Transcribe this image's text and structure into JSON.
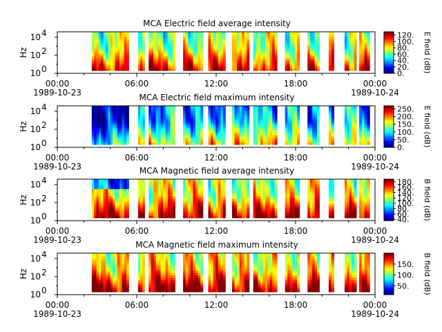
{
  "chart_data": [
    {
      "type": "heatmap",
      "title": "MCA  Electric field average intensity",
      "ylabel": "Hz",
      "ytick_labels": [
        [
          "10",
          "0"
        ],
        [
          "10",
          "2"
        ],
        [
          "10",
          "4"
        ]
      ],
      "xtick_labels": [
        "00:00",
        "06:00",
        "12:00",
        "18:00",
        "00:00"
      ],
      "date_labels": [
        "1989-10-23",
        "1989-10-24"
      ],
      "colorbar": {
        "label": "E field (dB)",
        "ticks": [
          "0.",
          "20.",
          "40.",
          "60.",
          "80.",
          "100.",
          "120."
        ],
        "range": [
          0,
          130
        ]
      },
      "bias": 0.0,
      "data_windows_hours": [
        [
          2.6,
          5.4
        ],
        [
          6.1,
          6.6
        ],
        [
          6.9,
          8.9
        ],
        [
          9.5,
          11.0
        ],
        [
          11.4,
          12.7
        ],
        [
          13.2,
          14.5
        ],
        [
          14.8,
          16.6
        ],
        [
          17.2,
          18.3
        ],
        [
          18.9,
          19.8
        ],
        [
          20.5,
          20.9
        ],
        [
          21.7,
          22.6
        ],
        [
          22.8,
          23.6
        ]
      ]
    },
    {
      "type": "heatmap",
      "title": "MCA  Electric field maximum intensity",
      "ylabel": "Hz",
      "ytick_labels": [
        [
          "10",
          "0"
        ],
        [
          "10",
          "2"
        ],
        [
          "10",
          "4"
        ]
      ],
      "xtick_labels": [
        "00:00",
        "06:00",
        "12:00",
        "18:00",
        "00:00"
      ],
      "date_labels": [
        "1989-10-23",
        "1989-10-24"
      ],
      "colorbar": {
        "label": "E field (dB)",
        "ticks": [
          "0.",
          "50.",
          "100.",
          "150.",
          "200.",
          "250."
        ],
        "range": [
          0,
          270
        ]
      },
      "bias": -0.25,
      "data_windows_hours": [
        [
          2.6,
          5.4
        ],
        [
          6.1,
          6.6
        ],
        [
          6.9,
          8.9
        ],
        [
          9.5,
          11.0
        ],
        [
          11.4,
          12.7
        ],
        [
          13.2,
          14.5
        ],
        [
          14.8,
          16.6
        ],
        [
          17.2,
          18.3
        ],
        [
          18.9,
          19.8
        ],
        [
          20.5,
          20.9
        ],
        [
          21.7,
          22.6
        ],
        [
          22.8,
          23.6
        ]
      ]
    },
    {
      "type": "heatmap",
      "title": "MCA  Magnetic field average intensity",
      "ylabel": "Hz",
      "ytick_labels": [
        [
          "10",
          "0"
        ],
        [
          "10",
          "2"
        ],
        [
          "10",
          "4"
        ]
      ],
      "xtick_labels": [
        "00:00",
        "06:00",
        "12:00",
        "18:00",
        "00:00"
      ],
      "date_labels": [
        "1989-10-23",
        "1989-10-24"
      ],
      "colorbar": {
        "label": "B field (dB)",
        "ticks": [
          "40.",
          "60.",
          "80.",
          "100.",
          "120.",
          "140.",
          "160.",
          "180."
        ],
        "range": [
          35,
          190
        ]
      },
      "bias": 0.05,
      "data_windows_hours": [
        [
          2.6,
          5.4
        ],
        [
          6.1,
          6.6
        ],
        [
          6.9,
          8.9
        ],
        [
          9.5,
          11.0
        ],
        [
          11.4,
          12.7
        ],
        [
          13.2,
          14.5
        ],
        [
          14.8,
          16.6
        ],
        [
          17.2,
          18.3
        ],
        [
          18.9,
          19.8
        ],
        [
          20.5,
          20.9
        ],
        [
          21.7,
          22.6
        ],
        [
          22.8,
          23.6
        ]
      ]
    },
    {
      "type": "heatmap",
      "title": "MCA  Magnetic field maximum intensity",
      "ylabel": "Hz",
      "ytick_labels": [
        [
          "10",
          "0"
        ],
        [
          "10",
          "2"
        ],
        [
          "10",
          "4"
        ]
      ],
      "xtick_labels": [
        "00:00",
        "06:00",
        "12:00",
        "18:00",
        "00:00"
      ],
      "date_labels": [
        "1989-10-23",
        "1989-10-24"
      ],
      "colorbar": {
        "label": "B field (dB)",
        "ticks": [
          "50.",
          "100.",
          "150."
        ],
        "range": [
          10,
          200
        ]
      },
      "bias": 0.1,
      "data_windows_hours": [
        [
          2.6,
          5.4
        ],
        [
          6.1,
          6.6
        ],
        [
          6.9,
          8.9
        ],
        [
          9.5,
          11.0
        ],
        [
          11.4,
          12.7
        ],
        [
          13.2,
          14.5
        ],
        [
          14.8,
          16.6
        ],
        [
          17.2,
          18.3
        ],
        [
          18.9,
          19.8
        ],
        [
          20.5,
          20.9
        ],
        [
          21.7,
          22.6
        ],
        [
          22.8,
          23.6
        ]
      ]
    }
  ]
}
